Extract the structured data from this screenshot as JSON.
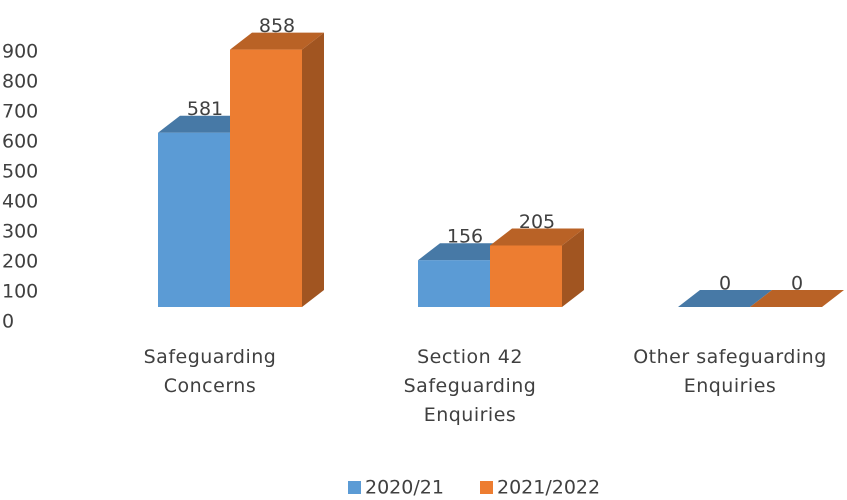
{
  "chart_data": {
    "type": "bar3d",
    "categories": [
      "Safeguarding Concerns",
      "Section 42 Safeguarding Enquiries",
      "Other safeguarding Enquiries"
    ],
    "series": [
      {
        "name": "2020/21",
        "color": "#5b9bd5",
        "values": [
          581,
          156,
          0
        ]
      },
      {
        "name": "2021/2022",
        "color": "#ed7d31",
        "values": [
          858,
          205,
          0
        ]
      }
    ],
    "ylim": [
      0,
      900
    ],
    "yticks": [
      0,
      100,
      200,
      300,
      400,
      500,
      600,
      700,
      800,
      900
    ],
    "legend": "bottom"
  }
}
